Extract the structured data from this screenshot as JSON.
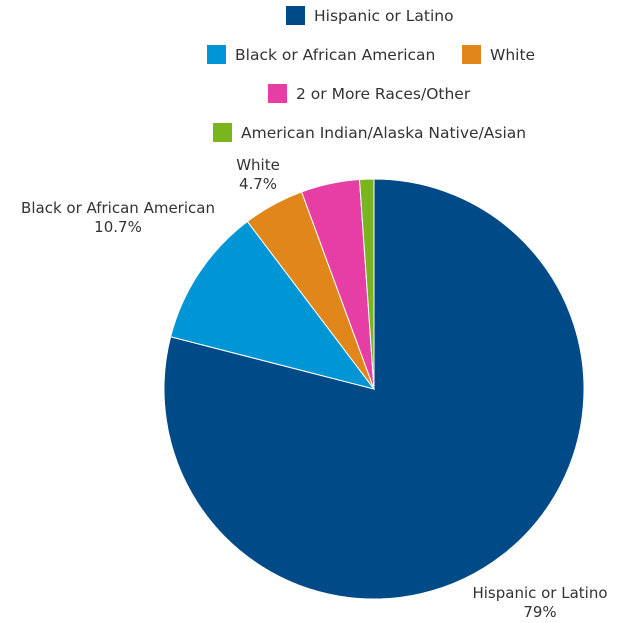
{
  "chart_data": {
    "type": "pie",
    "title": "",
    "categories": [
      "Hispanic or Latino",
      "Black or African American",
      "White",
      "2 or More Races/Other",
      "American Indian/Alaska Native/Asian"
    ],
    "values": [
      79,
      10.7,
      4.7,
      4.5,
      1.1
    ],
    "colors": [
      "#004a87",
      "#0096d6",
      "#e0861a",
      "#e63ea5",
      "#7ab51d"
    ],
    "legend": {
      "position": "top",
      "entries": [
        "Hispanic or Latino",
        "Black or African American",
        "White",
        "2 or More Races/Other",
        "American Indian/Alaska Native/Asian"
      ]
    },
    "data_labels": [
      {
        "name": "Hispanic or Latino",
        "value": "79%"
      },
      {
        "name": "Black or African American",
        "value": "10.7%"
      },
      {
        "name": "White",
        "value": "4.7%"
      }
    ]
  }
}
